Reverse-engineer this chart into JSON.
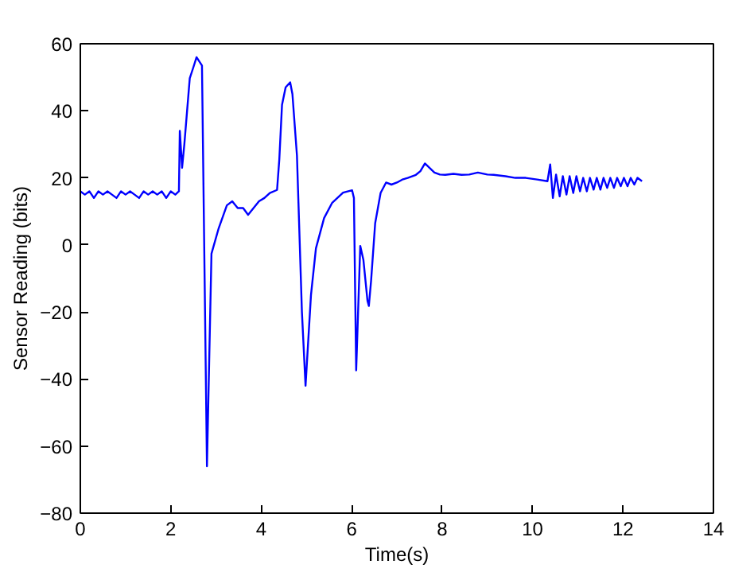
{
  "chart_data": {
    "type": "line",
    "xlabel": "Time(s)",
    "ylabel": "Sensor Reading (bits)",
    "xlim": [
      0,
      14
    ],
    "ylim": [
      -80,
      60
    ],
    "xticks": [
      0,
      2,
      4,
      6,
      8,
      10,
      12,
      14
    ],
    "yticks": [
      -80,
      -60,
      -40,
      -20,
      0,
      20,
      40,
      60
    ],
    "grid": false,
    "marker": "none",
    "line_style": "solid",
    "series": [
      {
        "color": "#0000ff",
        "x": [
          0,
          0.1,
          0.2,
          0.3,
          0.4,
          0.5,
          0.6,
          0.7,
          0.8,
          0.9,
          1.0,
          1.1,
          1.2,
          1.3,
          1.4,
          1.5,
          1.6,
          1.7,
          1.8,
          1.9,
          2.0,
          2.1,
          2.18,
          2.2,
          2.25,
          2.3,
          2.42,
          2.5,
          2.57,
          2.69,
          2.8,
          2.9,
          3.06,
          3.24,
          3.36,
          3.48,
          3.6,
          3.71,
          3.83,
          3.95,
          4.07,
          4.19,
          4.35,
          4.4,
          4.46,
          4.54,
          4.64,
          4.69,
          4.79,
          4.9,
          4.98,
          5.1,
          5.21,
          5.39,
          5.57,
          5.81,
          6.01,
          6.05,
          6.1,
          6.19,
          6.26,
          6.35,
          6.38,
          6.43,
          6.52,
          6.64,
          6.76,
          6.88,
          7.0,
          7.12,
          7.24,
          7.42,
          7.52,
          7.62,
          7.72,
          7.83,
          7.95,
          8.07,
          8.25,
          8.43,
          8.6,
          8.79,
          9.0,
          9.14,
          9.4,
          9.62,
          9.85,
          10.1,
          10.33,
          10.39,
          10.45,
          10.52,
          10.6,
          10.67,
          10.75,
          10.82,
          10.9,
          10.97,
          11.05,
          11.12,
          11.2,
          11.27,
          11.35,
          11.42,
          11.5,
          11.57,
          11.65,
          11.72,
          11.8,
          11.87,
          11.95,
          12.02,
          12.1,
          12.17,
          12.25,
          12.32,
          12.42
        ],
        "values": [
          16,
          15,
          16,
          14,
          16,
          15,
          16,
          15,
          14,
          16,
          15,
          16,
          15,
          14,
          16,
          15,
          16,
          15,
          16,
          14,
          16,
          15,
          16,
          34,
          23,
          30,
          49.7,
          53,
          56,
          53.5,
          -66,
          -2.6,
          5,
          11.8,
          13,
          11,
          11,
          9,
          11,
          13,
          14,
          15.5,
          16.4,
          25.5,
          41.8,
          47,
          48.5,
          45,
          26.7,
          -20,
          -42,
          -15,
          -1,
          8,
          12.6,
          15.6,
          16.3,
          14,
          -37.4,
          -0.3,
          -4.5,
          -16.7,
          -18.2,
          -10.6,
          6.5,
          15.5,
          18.6,
          18,
          18.6,
          19.5,
          20,
          20.9,
          22,
          24.3,
          23,
          21.6,
          21,
          20.9,
          21.2,
          20.9,
          21,
          21.6,
          21,
          20.9,
          20.5,
          20,
          20,
          19.5,
          19,
          24,
          14,
          21,
          14.5,
          20.5,
          15,
          20.5,
          15.5,
          20.5,
          16,
          20,
          16,
          20,
          16.5,
          20,
          16.5,
          20,
          17,
          20,
          17,
          20,
          17.5,
          20,
          17.5,
          20,
          18,
          20,
          19
        ]
      }
    ]
  }
}
